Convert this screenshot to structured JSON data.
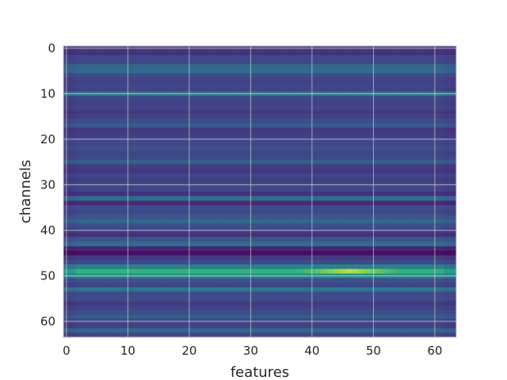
{
  "chart_data": {
    "type": "heatmap",
    "title": "",
    "xlabel": "features",
    "ylabel": "channels",
    "xlim": [
      -0.5,
      63.5
    ],
    "ylim": [
      63.5,
      -0.5
    ],
    "x_ticks": [
      0,
      10,
      20,
      30,
      40,
      50,
      60
    ],
    "y_ticks": [
      0,
      10,
      20,
      30,
      40,
      50,
      60
    ],
    "grid": true,
    "colormap": "viridis",
    "n_features": 64,
    "n_channels": 64,
    "row_levels": [
      0.22,
      0.18,
      0.26,
      0.28,
      0.42,
      0.44,
      0.3,
      0.24,
      0.26,
      0.25,
      0.5,
      0.27,
      0.24,
      0.26,
      0.22,
      0.24,
      0.3,
      0.35,
      0.2,
      0.23,
      0.27,
      0.26,
      0.32,
      0.25,
      0.28,
      0.38,
      0.22,
      0.2,
      0.26,
      0.22,
      0.27,
      0.25,
      0.18,
      0.45,
      0.15,
      0.3,
      0.26,
      0.33,
      0.42,
      0.3,
      0.25,
      0.18,
      0.35,
      0.45,
      0.14,
      0.05,
      0.22,
      0.28,
      0.55,
      0.78,
      0.62,
      0.32,
      0.25,
      0.5,
      0.28,
      0.3,
      0.22,
      0.25,
      0.3,
      0.35,
      0.26,
      0.24,
      0.42,
      0.26
    ],
    "column_modulation": {
      "note": "values vary slightly along features; brighter around features 42-50 on row 49",
      "hotspot_rows": [
        49
      ],
      "hotspot_range": [
        42,
        50
      ],
      "hotspot_value": 0.95
    }
  }
}
